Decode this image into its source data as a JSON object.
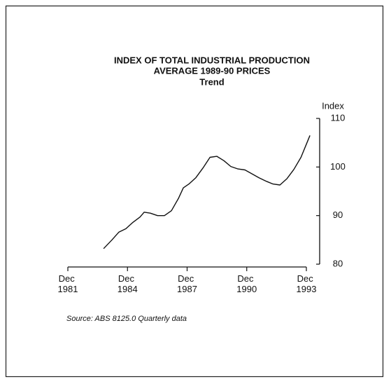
{
  "chart_data": {
    "type": "line",
    "title": "INDEX OF TOTAL INDUSTRIAL PRODUCTION",
    "subtitle": "AVERAGE 1989-90 PRICES",
    "subtitle2": "Trend",
    "ylabel": "Index",
    "source": "Source: ABS 8125.0 Quarterly data",
    "x": [
      1983.72,
      1984.14,
      1984.49,
      1984.84,
      1985.19,
      1985.55,
      1985.76,
      1986.07,
      1986.43,
      1986.78,
      1987.13,
      1987.48,
      1987.73,
      1988.01,
      1988.36,
      1988.72,
      1989.07,
      1989.42,
      1989.77,
      1990.12,
      1990.48,
      1990.83,
      1991.18,
      1991.53,
      1991.88,
      1992.24,
      1992.59,
      1992.94,
      1993.29,
      1993.65,
      1994.0,
      1994.1
    ],
    "series": [
      {
        "name": "Index",
        "color": "#111111",
        "values": [
          83.2,
          85.0,
          86.6,
          87.3,
          88.6,
          89.7,
          90.7,
          90.5,
          90.0,
          90.0,
          91.0,
          93.5,
          95.7,
          96.5,
          97.8,
          99.8,
          102.0,
          102.2,
          101.3,
          100.1,
          99.6,
          99.4,
          98.6,
          97.8,
          97.1,
          96.5,
          96.3,
          97.6,
          99.5,
          102.0,
          105.5,
          106.5
        ]
      }
    ],
    "xlim": [
      1981.92,
      1993.92
    ],
    "xticks": [
      {
        "value": 1981.92,
        "label": "Dec 1981"
      },
      {
        "value": 1984.92,
        "label": "Dec 1984"
      },
      {
        "value": 1987.92,
        "label": "Dec 1987"
      },
      {
        "value": 1990.92,
        "label": "Dec 1990"
      },
      {
        "value": 1993.92,
        "label": "Dec 1993"
      }
    ],
    "ylim": [
      80,
      110
    ],
    "yticks": [
      80,
      90,
      100,
      110
    ],
    "y_axis_side": "right"
  }
}
